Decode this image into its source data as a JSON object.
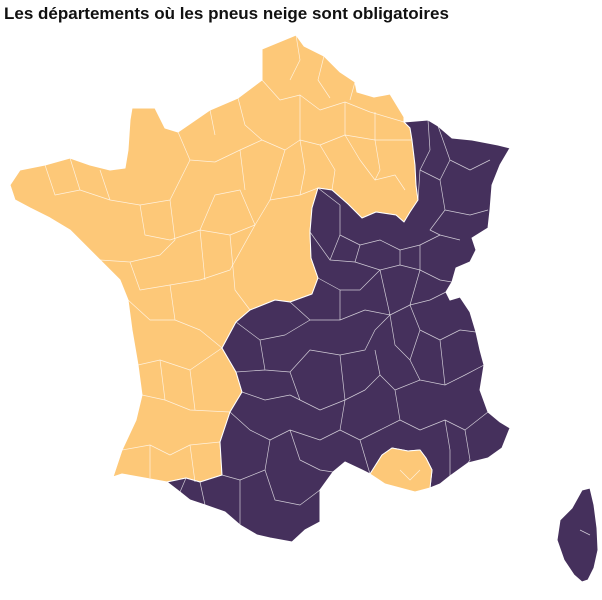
{
  "title": "Les départements où les pneus neige sont obligatoires",
  "colors": {
    "obligatoire": "#45305c",
    "non_obligatoire": "#fdc878",
    "border": "#ffffff",
    "background": "#ffffff"
  },
  "regions": [
    {
      "name": "non-obligatoire",
      "status": "non_obligatoire"
    },
    {
      "name": "obligatoire",
      "status": "obligatoire"
    },
    {
      "name": "non-obligatoire-provence",
      "status": "non_obligatoire"
    },
    {
      "name": "corse",
      "status": "obligatoire"
    }
  ]
}
